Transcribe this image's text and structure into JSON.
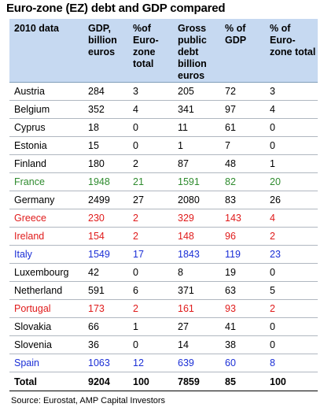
{
  "chart_data": {
    "type": "table",
    "title": "Euro-zone (EZ) debt and GDP compared",
    "columns": [
      "2010 data",
      "GDP, billion euros",
      "%of Euro-zone total",
      "Gross public debt billion euros",
      "% of GDP",
      "% of Euro-zone total"
    ],
    "rows": [
      {
        "country": "Austria",
        "values": [
          "284",
          "3",
          "205",
          "72",
          "3"
        ],
        "color": "#000000"
      },
      {
        "country": "Belgium",
        "values": [
          "352",
          "4",
          "341",
          "97",
          "4"
        ],
        "color": "#000000"
      },
      {
        "country": "Cyprus",
        "values": [
          "18",
          "0",
          "11",
          "61",
          "0"
        ],
        "color": "#000000"
      },
      {
        "country": "Estonia",
        "values": [
          "15",
          "0",
          "1",
          "7",
          "0"
        ],
        "color": "#000000"
      },
      {
        "country": "Finland",
        "values": [
          "180",
          "2",
          "87",
          "48",
          "1"
        ],
        "color": "#000000"
      },
      {
        "country": "France",
        "values": [
          "1948",
          "21",
          "1591",
          "82",
          "20"
        ],
        "color": "#2e8b2e"
      },
      {
        "country": "Germany",
        "values": [
          "2499",
          "27",
          "2080",
          "83",
          "26"
        ],
        "color": "#000000"
      },
      {
        "country": "Greece",
        "values": [
          "230",
          "2",
          "329",
          "143",
          "4"
        ],
        "color": "#e01b1b"
      },
      {
        "country": "Ireland",
        "values": [
          "154",
          "2",
          "148",
          "96",
          "2"
        ],
        "color": "#e01b1b"
      },
      {
        "country": "Italy",
        "values": [
          "1549",
          "17",
          "1843",
          "119",
          "23"
        ],
        "color": "#1b2fd6"
      },
      {
        "country": "Luxembourg",
        "values": [
          "42",
          "0",
          "8",
          "19",
          "0"
        ],
        "color": "#000000"
      },
      {
        "country": "Netherland",
        "values": [
          "591",
          "6",
          "371",
          "63",
          "5"
        ],
        "color": "#000000"
      },
      {
        "country": "Portugal",
        "values": [
          "173",
          "2",
          "161",
          "93",
          "2"
        ],
        "color": "#e01b1b"
      },
      {
        "country": "Slovakia",
        "values": [
          "66",
          "1",
          "27",
          "41",
          "0"
        ],
        "color": "#000000"
      },
      {
        "country": "Slovenia",
        "values": [
          "36",
          "0",
          "14",
          "38",
          "0"
        ],
        "color": "#000000"
      },
      {
        "country": "Spain",
        "values": [
          "1063",
          "12",
          "639",
          "60",
          "8"
        ],
        "color": "#1b2fd6"
      }
    ],
    "total": {
      "label": "Total",
      "values": [
        "9204",
        "100",
        "7859",
        "85",
        "100"
      ]
    },
    "header_fill": "#c6d9f1",
    "source": "Source: Eurostat, AMP Capital Investors"
  }
}
